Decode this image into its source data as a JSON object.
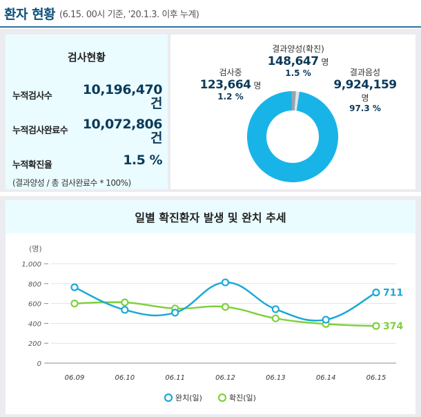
{
  "header": {
    "title": "환자 현황",
    "subtitle": "(6.15. 00시 기준, '20.1.3. 이후 누계)"
  },
  "test_status": {
    "title": "검사현황",
    "rows": [
      {
        "label": "누적검사수",
        "value": "10,196,470",
        "unit": "건"
      },
      {
        "label": "누적검사완료수",
        "value": "10,072,806",
        "unit": "건"
      },
      {
        "label": "누적확진율",
        "value": "1.5 %",
        "unit": ""
      }
    ],
    "note": "(결과양성 / 총 검사완료수 * 100%)"
  },
  "donut": {
    "segments": [
      {
        "label": "결과양성(확진)",
        "value": "148,647",
        "unit": "명",
        "pct": "1.5 %",
        "fraction": 0.015,
        "color": "#9aa3ad"
      },
      {
        "label": "검사중",
        "value": "123,664",
        "unit": "명",
        "pct": "1.2 %",
        "fraction": 0.012,
        "color": "#e1e4e8"
      },
      {
        "label": "결과음성",
        "value": "9,924,159",
        "unit": "명",
        "pct": "97.3 %",
        "fraction": 0.973,
        "color": "#18b4e8"
      }
    ]
  },
  "chart_data": {
    "type": "line",
    "title": "일별 확진환자 발생 및 완치 추세",
    "unit_label": "(명)",
    "categories": [
      "06.09",
      "06.10",
      "06.11",
      "06.12",
      "06.13",
      "06.14",
      "06.15"
    ],
    "ylim": [
      0,
      1000
    ],
    "yticks": [
      "0",
      "200",
      "400",
      "600",
      "800",
      "1,000"
    ],
    "grid": true,
    "legend_position": "bottom",
    "series": [
      {
        "name": "완치(일)",
        "values": [
          763,
          536,
          508,
          812,
          543,
          437,
          711
        ],
        "color": "#1aa9d6",
        "end_label": "711"
      },
      {
        "name": "확진(일)",
        "values": [
          600,
          611,
          550,
          566,
          450,
          394,
          374
        ],
        "color": "#7ed13c",
        "end_label": "374"
      }
    ]
  },
  "colors": {
    "accent": "#0b4f7a",
    "recovered": "#1aa9d6",
    "confirmed": "#7ed13c"
  }
}
